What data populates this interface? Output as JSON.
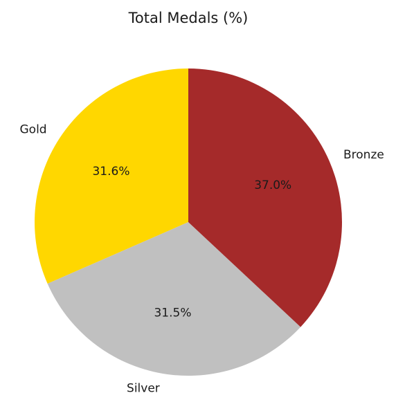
{
  "chart_data": {
    "type": "pie",
    "title": "Total Medals (%)",
    "slices": [
      {
        "label": "Gold",
        "value": 31.6,
        "pct_label": "31.6%",
        "color": "#ffd700"
      },
      {
        "label": "Silver",
        "value": 31.5,
        "pct_label": "31.5%",
        "color": "#c0c0c0"
      },
      {
        "label": "Bronze",
        "value": 37.0,
        "pct_label": "37.0%",
        "color": "#a52a2a"
      }
    ],
    "start_angle_deg": 90,
    "direction": "counterclockwise"
  }
}
